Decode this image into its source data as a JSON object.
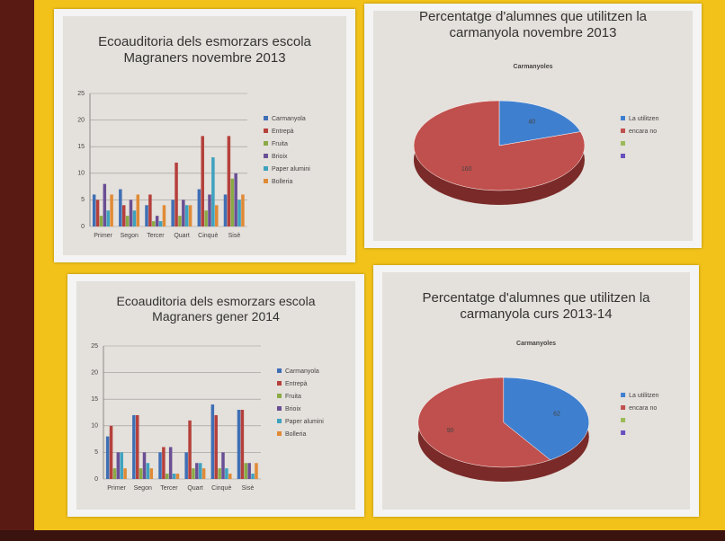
{
  "chart_data": [
    {
      "type": "bar",
      "title": "Ecoauditoria dels esmorzars escola Magraners novembre 2013",
      "categories": [
        "Primer",
        "Segon",
        "Tercer",
        "Quart",
        "Cinquè",
        "Sisè"
      ],
      "series": [
        {
          "name": "Carmanyola",
          "color": "#3f6fb5",
          "values": [
            6,
            7,
            4,
            5,
            7,
            6
          ]
        },
        {
          "name": "Entrepà",
          "color": "#b5403c",
          "values": [
            5,
            4,
            6,
            12,
            17,
            17
          ]
        },
        {
          "name": "Fruita",
          "color": "#8aaa45",
          "values": [
            2,
            2,
            1,
            2,
            3,
            9
          ]
        },
        {
          "name": "Brioix",
          "color": "#6a4f95",
          "values": [
            8,
            5,
            2,
            5,
            6,
            10
          ]
        },
        {
          "name": "Paper alumini",
          "color": "#3ea2bf",
          "values": [
            3,
            3,
            1,
            4,
            13,
            5
          ]
        },
        {
          "name": "Bolleria",
          "color": "#e08a35",
          "values": [
            6,
            6,
            4,
            4,
            4,
            6
          ]
        }
      ],
      "ylim": [
        0,
        25
      ],
      "yticks": [
        0,
        5,
        10,
        15,
        20,
        25
      ],
      "grid": true
    },
    {
      "type": "pie",
      "title": "Percentatge d'alumnes que utilitzen la carmanyola novembre 2013",
      "subtitle": "Carmanyoles",
      "categories": [
        "La utilitzen",
        "encara no",
        null,
        null
      ],
      "values": [
        40,
        160,
        null,
        null
      ],
      "colors": [
        "#3f7fcf",
        "#c0504d",
        "#9bbb59",
        "#6a4fbf"
      ]
    },
    {
      "type": "bar",
      "title": "Ecoauditoria dels esmorzars escola Magraners gener 2014",
      "categories": [
        "Primer",
        "Segon",
        "Tercer",
        "Quart",
        "Cinquè",
        "Sisè"
      ],
      "series": [
        {
          "name": "Carmanyola",
          "color": "#3f6fb5",
          "values": [
            8,
            12,
            5,
            5,
            14,
            13
          ]
        },
        {
          "name": "Entrepà",
          "color": "#b5403c",
          "values": [
            10,
            12,
            6,
            11,
            12,
            13
          ]
        },
        {
          "name": "Fruita",
          "color": "#8aaa45",
          "values": [
            2,
            2,
            1,
            2,
            2,
            3
          ]
        },
        {
          "name": "Brioix",
          "color": "#6a4f95",
          "values": [
            5,
            5,
            6,
            3,
            5,
            3
          ]
        },
        {
          "name": "Paper alumini",
          "color": "#3ea2bf",
          "values": [
            5,
            3,
            1,
            3,
            2,
            1
          ]
        },
        {
          "name": "Bolleria",
          "color": "#e08a35",
          "values": [
            2,
            2,
            1,
            2,
            1,
            3
          ]
        }
      ],
      "ylim": [
        0,
        25
      ],
      "yticks": [
        0,
        5,
        10,
        15,
        20,
        25
      ],
      "grid": true
    },
    {
      "type": "pie",
      "title": "Percentatge d'alumnes que utilitzen la carmanyola curs 2013-14",
      "subtitle": "Carmanyoles",
      "categories": [
        "La utilitzen",
        "encara no",
        null,
        null
      ],
      "values": [
        62,
        90,
        null,
        null
      ],
      "colors": [
        "#3f7fcf",
        "#c0504d",
        "#9bbb59",
        "#6a4fbf"
      ]
    }
  ]
}
